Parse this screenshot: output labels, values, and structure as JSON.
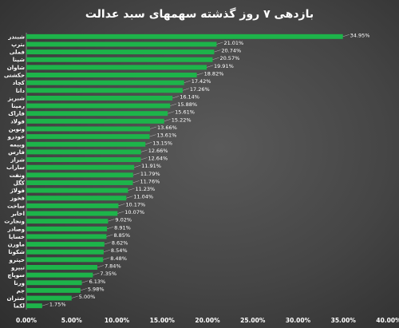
{
  "chart_data": {
    "type": "bar",
    "orientation": "horizontal",
    "title": "بازدهی ۷ روز گذشته سهمهای سبد عدالت",
    "categories": [
      "شبندر",
      "بترپ",
      "فملی",
      "شپنا",
      "شاوان",
      "حکشتی",
      "کچاد",
      "دانا",
      "شبریز",
      "رمپنا",
      "فاراک",
      "فولاد",
      "ونوین",
      "خودرو",
      "وبیمه",
      "فارس",
      "شراز",
      "ساراب",
      "ونفت",
      "کگل",
      "فولاژ",
      "فخوز",
      "ساخت",
      "اخابر",
      "ونجارت",
      "وصادر",
      "خساپا",
      "ماورن",
      "شکونا",
      "حپترو",
      "تیپرو",
      "سوپاچ",
      "ورنا",
      "جم",
      "شتران",
      "لکما"
    ],
    "values": [
      34.95,
      21.01,
      20.74,
      20.57,
      19.91,
      18.82,
      17.42,
      17.26,
      16.14,
      15.88,
      15.61,
      15.22,
      13.66,
      13.61,
      13.15,
      12.66,
      12.64,
      11.91,
      11.79,
      11.76,
      11.23,
      11.04,
      10.17,
      10.07,
      9.02,
      8.91,
      8.85,
      8.62,
      8.54,
      8.48,
      7.84,
      7.35,
      6.13,
      5.98,
      5.0,
      1.75
    ],
    "value_labels": [
      "34.95%",
      "21.01%",
      "20.74%",
      "20.57%",
      "19.91%",
      "18.82%",
      "17.42%",
      "17.26%",
      "16.14%",
      "15.88%",
      "15.61%",
      "15.22%",
      "13.66%",
      "13.61%",
      "13.15%",
      "12.66%",
      "12.64%",
      "11.91%",
      "11.79%",
      "11.76%",
      "11.23%",
      "11.04%",
      "10.17%",
      "10.07%",
      "9.02%",
      "8.91%",
      "8.85%",
      "8.62%",
      "8.54%",
      "8.48%",
      "7.84%",
      "7.35%",
      "6.13%",
      "5.98%",
      "5.00%",
      "1.75%"
    ],
    "xlim": [
      0,
      40
    ],
    "x_ticks": [
      0,
      5,
      10,
      15,
      20,
      25,
      30,
      35,
      40
    ],
    "x_tick_labels": [
      "0.00%",
      "5.00%",
      "10.00%",
      "15.00%",
      "20.00%",
      "25.00%",
      "30.00%",
      "35.00%",
      "40.00%"
    ],
    "grid": false,
    "colors": {
      "bar": "#1db44a",
      "background": "#4a4a4a",
      "text": "#ffffff",
      "leader": "#bbbbbb"
    }
  }
}
